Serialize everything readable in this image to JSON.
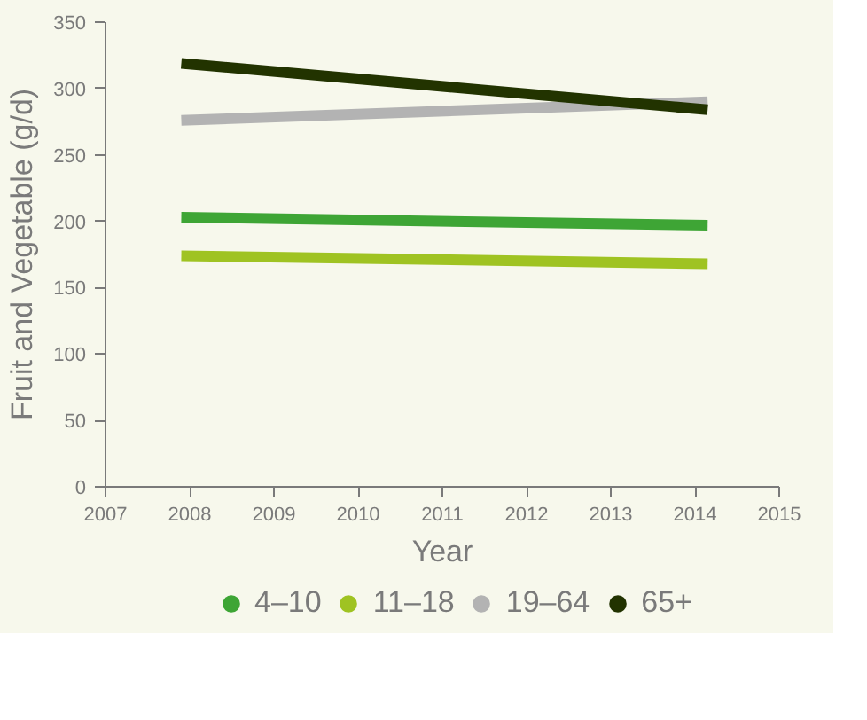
{
  "chart_data": {
    "type": "line",
    "xlabel": "Year",
    "ylabel": "Fruit and Vegetable (g/d)",
    "x": [
      2007.9,
      2014.15
    ],
    "series": [
      {
        "name": "4–10",
        "color": "#3ea535",
        "values": [
          203,
          197
        ]
      },
      {
        "name": "11–18",
        "color": "#9fc322",
        "values": [
          174,
          168
        ]
      },
      {
        "name": "19–64",
        "color": "#b3b3b3",
        "values": [
          276,
          290
        ]
      },
      {
        "name": "65+",
        "color": "#223300",
        "values": [
          319,
          284
        ]
      }
    ],
    "xlim": [
      2007,
      2015
    ],
    "xticks": [
      2007,
      2008,
      2009,
      2010,
      2011,
      2012,
      2013,
      2014,
      2015
    ],
    "ylim": [
      0,
      350
    ],
    "yticks": [
      0,
      50,
      100,
      150,
      200,
      250,
      300,
      350
    ],
    "grid": false,
    "legend": "bottom",
    "marker": "none",
    "line_style": "solid"
  }
}
